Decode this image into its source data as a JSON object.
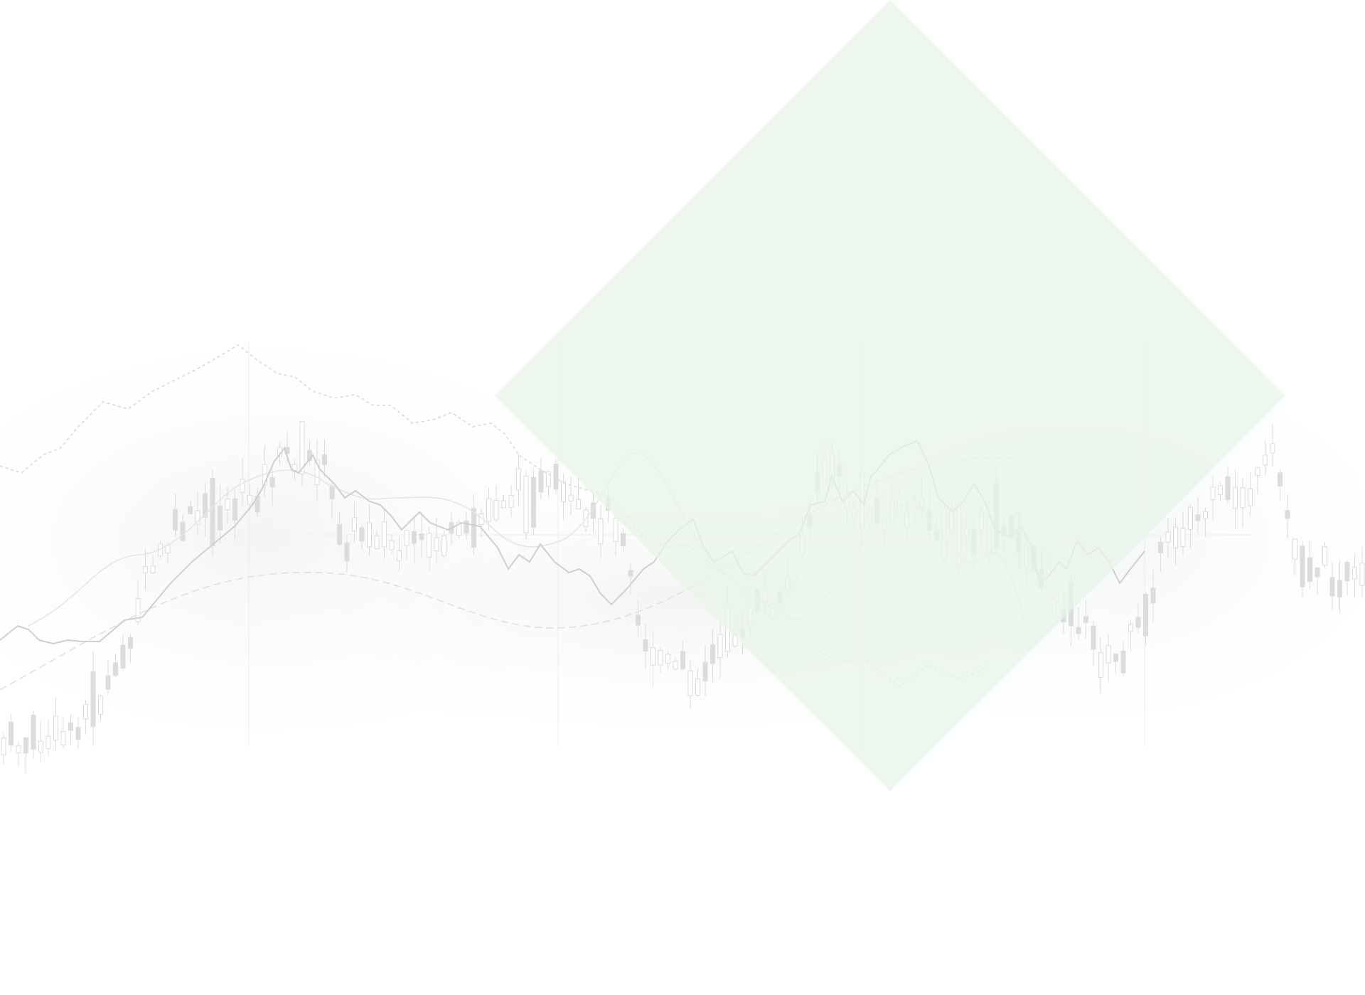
{
  "background": {
    "page_color": "#ffffff",
    "chart_line_color": "#cfcfcf",
    "candle_color": "#dcdcdc",
    "grid_color": "#ededed",
    "fog_color": "#f5f5f5"
  },
  "diamond": {
    "color": "#e8f4e8",
    "opacity": 0.75
  }
}
